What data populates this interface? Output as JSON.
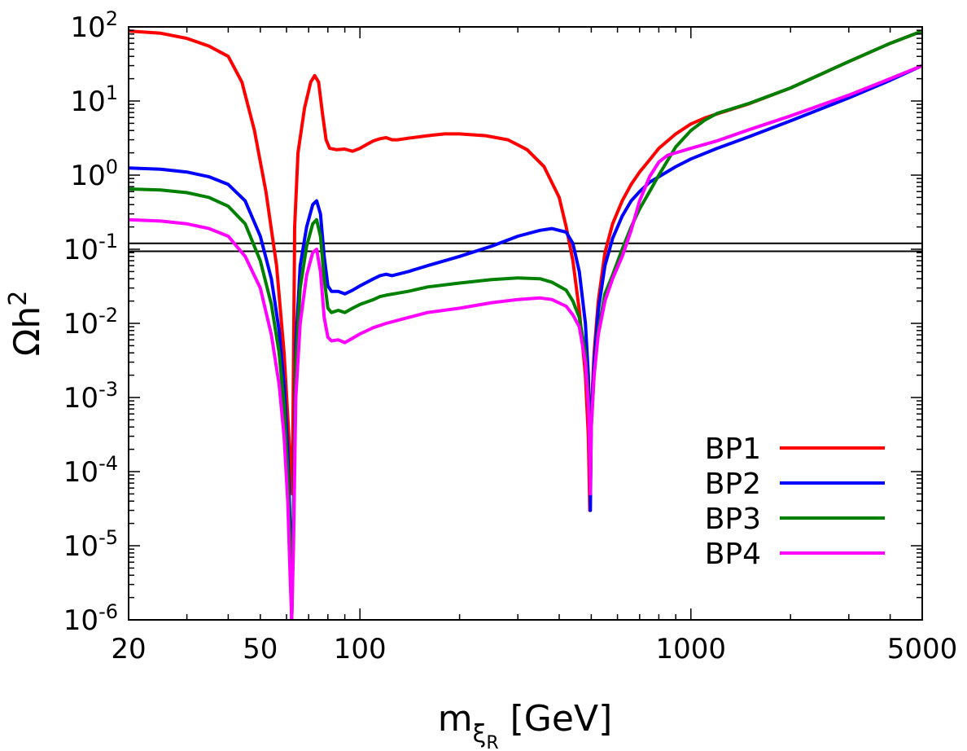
{
  "chart_data": {
    "type": "line",
    "xscale": "log",
    "yscale": "log",
    "xlim": [
      20,
      5000
    ],
    "ylim": [
      1e-06,
      100
    ],
    "x_ticks": [
      {
        "value": 20,
        "label": "20"
      },
      {
        "value": 50,
        "label": "50"
      },
      {
        "value": 100,
        "label": "100"
      },
      {
        "value": 1000,
        "label": "1000"
      },
      {
        "value": 5000,
        "label": "5000"
      }
    ],
    "y_ticks": [
      {
        "value": 100,
        "base": "10",
        "exp": "2"
      },
      {
        "value": 10,
        "base": "10",
        "exp": "1"
      },
      {
        "value": 1,
        "base": "10",
        "exp": "0"
      },
      {
        "value": 0.1,
        "base": "10",
        "exp": "-1"
      },
      {
        "value": 0.01,
        "base": "10",
        "exp": "-2"
      },
      {
        "value": 0.001,
        "base": "10",
        "exp": "-3"
      },
      {
        "value": 0.0001,
        "base": "10",
        "exp": "-4"
      },
      {
        "value": 1e-05,
        "base": "10",
        "exp": "-5"
      },
      {
        "value": 1e-06,
        "base": "10",
        "exp": "-6"
      }
    ],
    "xlabel": {
      "main": "m",
      "sub1": "ξ",
      "sub2": "R",
      "unit": " [GeV]"
    },
    "ylabel": {
      "main": "Ωh",
      "sup": "2"
    },
    "reference_lines": [
      0.12,
      0.094
    ],
    "legend_position": "bottom-right",
    "series": [
      {
        "name": "BP1",
        "color": "#ff0000",
        "points": [
          [
            20,
            88
          ],
          [
            25,
            82
          ],
          [
            30,
            70
          ],
          [
            35,
            55
          ],
          [
            40,
            40
          ],
          [
            44,
            18
          ],
          [
            48,
            4
          ],
          [
            52,
            0.6
          ],
          [
            56,
            0.06
          ],
          [
            59,
            0.004
          ],
          [
            61,
            0.0003
          ],
          [
            62.5,
            5e-05
          ],
          [
            63.5,
            0.2
          ],
          [
            65,
            2
          ],
          [
            68,
            8
          ],
          [
            71,
            18
          ],
          [
            73,
            22
          ],
          [
            75,
            18
          ],
          [
            77,
            7
          ],
          [
            79,
            3
          ],
          [
            81,
            2.3
          ],
          [
            85,
            2.2
          ],
          [
            90,
            2.25
          ],
          [
            95,
            2.1
          ],
          [
            100,
            2.3
          ],
          [
            105,
            2.6
          ],
          [
            110,
            2.9
          ],
          [
            115,
            3.1
          ],
          [
            120,
            3.2
          ],
          [
            125,
            3.0
          ],
          [
            130,
            3.0
          ],
          [
            140,
            3.15
          ],
          [
            160,
            3.4
          ],
          [
            180,
            3.6
          ],
          [
            200,
            3.6
          ],
          [
            240,
            3.4
          ],
          [
            280,
            3.0
          ],
          [
            320,
            2.2
          ],
          [
            360,
            1.3
          ],
          [
            400,
            0.5
          ],
          [
            420,
            0.2
          ],
          [
            440,
            0.07
          ],
          [
            460,
            0.015
          ],
          [
            480,
            0.002
          ],
          [
            490,
            0.0003
          ],
          [
            495,
            3e-05
          ],
          [
            500,
            0.0006
          ],
          [
            510,
            0.004
          ],
          [
            525,
            0.02
          ],
          [
            550,
            0.09
          ],
          [
            580,
            0.22
          ],
          [
            620,
            0.45
          ],
          [
            660,
            0.75
          ],
          [
            700,
            1.1
          ],
          [
            750,
            1.6
          ],
          [
            800,
            2.3
          ],
          [
            900,
            3.6
          ],
          [
            1000,
            4.9
          ],
          [
            1100,
            5.9
          ],
          [
            1200,
            6.7
          ],
          [
            1500,
            9.2
          ],
          [
            2000,
            15
          ],
          [
            3000,
            34
          ],
          [
            4000,
            60
          ],
          [
            5000,
            88
          ]
        ]
      },
      {
        "name": "BP2",
        "color": "#0000ff",
        "points": [
          [
            20,
            1.25
          ],
          [
            25,
            1.2
          ],
          [
            30,
            1.1
          ],
          [
            35,
            0.95
          ],
          [
            40,
            0.75
          ],
          [
            45,
            0.45
          ],
          [
            50,
            0.15
          ],
          [
            54,
            0.04
          ],
          [
            57,
            0.008
          ],
          [
            59,
            0.0015
          ],
          [
            60.5,
            0.0002
          ],
          [
            61.5,
            2e-05
          ],
          [
            62.2,
            1e-06
          ],
          [
            63,
            3e-05
          ],
          [
            64,
            0.005
          ],
          [
            66,
            0.06
          ],
          [
            69,
            0.2
          ],
          [
            72,
            0.4
          ],
          [
            74,
            0.45
          ],
          [
            76,
            0.3
          ],
          [
            78,
            0.08
          ],
          [
            80,
            0.032
          ],
          [
            82,
            0.027
          ],
          [
            86,
            0.027
          ],
          [
            90,
            0.025
          ],
          [
            95,
            0.028
          ],
          [
            100,
            0.032
          ],
          [
            110,
            0.04
          ],
          [
            115,
            0.044
          ],
          [
            120,
            0.046
          ],
          [
            125,
            0.044
          ],
          [
            140,
            0.05
          ],
          [
            160,
            0.06
          ],
          [
            200,
            0.08
          ],
          [
            250,
            0.11
          ],
          [
            300,
            0.15
          ],
          [
            350,
            0.18
          ],
          [
            380,
            0.19
          ],
          [
            420,
            0.17
          ],
          [
            440,
            0.12
          ],
          [
            460,
            0.05
          ],
          [
            480,
            0.01
          ],
          [
            490,
            0.002
          ],
          [
            495,
            0.0003
          ],
          [
            497,
            3e-05
          ],
          [
            500,
            0.0005
          ],
          [
            510,
            0.003
          ],
          [
            525,
            0.015
          ],
          [
            550,
            0.06
          ],
          [
            580,
            0.14
          ],
          [
            620,
            0.28
          ],
          [
            660,
            0.45
          ],
          [
            700,
            0.6
          ],
          [
            750,
            0.8
          ],
          [
            800,
            0.95
          ],
          [
            900,
            1.3
          ],
          [
            1000,
            1.65
          ],
          [
            1200,
            2.3
          ],
          [
            1500,
            3.3
          ],
          [
            2000,
            5.4
          ],
          [
            3000,
            11
          ],
          [
            4000,
            19
          ],
          [
            5000,
            30
          ]
        ]
      },
      {
        "name": "BP3",
        "color": "#008000",
        "points": [
          [
            20,
            0.65
          ],
          [
            25,
            0.63
          ],
          [
            30,
            0.58
          ],
          [
            35,
            0.5
          ],
          [
            40,
            0.38
          ],
          [
            45,
            0.22
          ],
          [
            50,
            0.07
          ],
          [
            54,
            0.018
          ],
          [
            57,
            0.004
          ],
          [
            59,
            0.0008
          ],
          [
            60.5,
            0.0001
          ],
          [
            61.5,
            1e-05
          ],
          [
            62.2,
            1e-06
          ],
          [
            63,
            2e-05
          ],
          [
            64,
            0.003
          ],
          [
            66,
            0.03
          ],
          [
            69,
            0.11
          ],
          [
            72,
            0.22
          ],
          [
            74,
            0.25
          ],
          [
            76,
            0.15
          ],
          [
            78,
            0.04
          ],
          [
            80,
            0.016
          ],
          [
            82,
            0.014
          ],
          [
            86,
            0.015
          ],
          [
            90,
            0.014
          ],
          [
            95,
            0.016
          ],
          [
            100,
            0.018
          ],
          [
            110,
            0.021
          ],
          [
            115,
            0.023
          ],
          [
            120,
            0.024
          ],
          [
            140,
            0.027
          ],
          [
            160,
            0.031
          ],
          [
            200,
            0.035
          ],
          [
            250,
            0.039
          ],
          [
            300,
            0.041
          ],
          [
            350,
            0.04
          ],
          [
            380,
            0.036
          ],
          [
            420,
            0.028
          ],
          [
            440,
            0.02
          ],
          [
            460,
            0.012
          ],
          [
            480,
            0.004
          ],
          [
            490,
            0.001
          ],
          [
            495,
            0.0002
          ],
          [
            497,
            5e-05
          ],
          [
            500,
            0.0004
          ],
          [
            510,
            0.002
          ],
          [
            525,
            0.008
          ],
          [
            550,
            0.025
          ],
          [
            580,
            0.045
          ],
          [
            620,
            0.1
          ],
          [
            660,
            0.2
          ],
          [
            700,
            0.35
          ],
          [
            750,
            0.6
          ],
          [
            800,
            1.0
          ],
          [
            900,
            2.4
          ],
          [
            1000,
            4.0
          ],
          [
            1100,
            5.5
          ],
          [
            1200,
            6.8
          ],
          [
            1500,
            9.3
          ],
          [
            2000,
            15
          ],
          [
            3000,
            34
          ],
          [
            4000,
            60
          ],
          [
            5000,
            88
          ]
        ]
      },
      {
        "name": "BP4",
        "color": "#ff00ff",
        "points": [
          [
            20,
            0.25
          ],
          [
            25,
            0.24
          ],
          [
            30,
            0.22
          ],
          [
            35,
            0.19
          ],
          [
            40,
            0.15
          ],
          [
            45,
            0.08
          ],
          [
            50,
            0.03
          ],
          [
            54,
            0.007
          ],
          [
            57,
            0.0015
          ],
          [
            59,
            0.0003
          ],
          [
            60.5,
            4e-05
          ],
          [
            61.5,
            4e-06
          ],
          [
            62.2,
            1e-06
          ],
          [
            63,
            1e-05
          ],
          [
            64,
            0.001
          ],
          [
            66,
            0.01
          ],
          [
            69,
            0.045
          ],
          [
            72,
            0.09
          ],
          [
            74,
            0.1
          ],
          [
            76,
            0.05
          ],
          [
            78,
            0.012
          ],
          [
            80,
            0.0065
          ],
          [
            82,
            0.0058
          ],
          [
            86,
            0.006
          ],
          [
            90,
            0.0055
          ],
          [
            95,
            0.0063
          ],
          [
            100,
            0.0072
          ],
          [
            110,
            0.0088
          ],
          [
            120,
            0.01
          ],
          [
            140,
            0.012
          ],
          [
            160,
            0.014
          ],
          [
            200,
            0.016
          ],
          [
            250,
            0.019
          ],
          [
            300,
            0.021
          ],
          [
            350,
            0.022
          ],
          [
            380,
            0.021
          ],
          [
            420,
            0.017
          ],
          [
            440,
            0.013
          ],
          [
            460,
            0.009
          ],
          [
            480,
            0.003
          ],
          [
            490,
            0.0008
          ],
          [
            495,
            0.00015
          ],
          [
            497,
            5e-05
          ],
          [
            500,
            0.0004
          ],
          [
            510,
            0.002
          ],
          [
            525,
            0.007
          ],
          [
            550,
            0.02
          ],
          [
            580,
            0.04
          ],
          [
            620,
            0.08
          ],
          [
            660,
            0.18
          ],
          [
            700,
            0.45
          ],
          [
            750,
            0.95
          ],
          [
            800,
            1.5
          ],
          [
            850,
            1.85
          ],
          [
            900,
            2.0
          ],
          [
            1000,
            2.3
          ],
          [
            1200,
            2.9
          ],
          [
            1500,
            4.1
          ],
          [
            2000,
            6.3
          ],
          [
            3000,
            12
          ],
          [
            4000,
            20
          ],
          [
            5000,
            30
          ]
        ]
      }
    ]
  }
}
